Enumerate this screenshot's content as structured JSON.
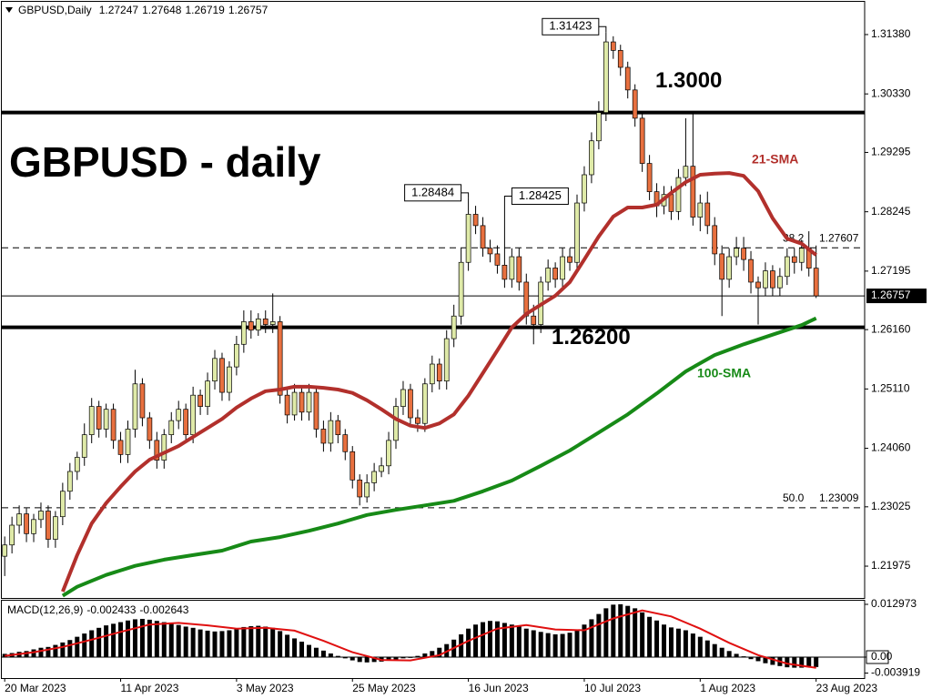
{
  "chart_data": [
    {
      "type": "candlestick",
      "symbol": "GBPUSD,Daily",
      "title": "GBPUSD - daily",
      "up_color": "#dfeaa8",
      "down_color": "#e8703f",
      "xlim": [
        -0.4,
        118.7
      ],
      "ylim": [
        1.21412,
        1.31911
      ],
      "yticks": [
        {
          "value": 1.3138,
          "label": "1.31380"
        },
        {
          "value": 1.3033,
          "label": "1.30330"
        },
        1.29295,
        1.28245,
        1.27195,
        {
          "value": 1.2616,
          "label": "1.26160"
        },
        {
          "value": 1.2511,
          "label": "1.25110"
        },
        {
          "value": 1.2406,
          "label": "1.24060"
        },
        1.23025,
        1.21975
      ],
      "open": [
        1.2215,
        1.2235,
        1.227,
        1.229,
        1.2255,
        1.228,
        1.2295,
        1.2245,
        1.2285,
        1.233,
        1.2365,
        1.239,
        1.243,
        1.248,
        1.244,
        1.2475,
        1.242,
        1.2395,
        1.244,
        1.252,
        1.246,
        1.242,
        1.2385,
        1.243,
        1.2455,
        1.2475,
        1.243,
        1.25,
        1.248,
        1.2525,
        1.2565,
        1.2505,
        1.255,
        1.259,
        1.263,
        1.2615,
        1.2635,
        1.2625,
        1.263,
        1.25,
        1.2465,
        1.2505,
        1.247,
        1.2505,
        1.244,
        1.2415,
        1.2455,
        1.243,
        1.24,
        1.235,
        1.232,
        1.2345,
        1.2365,
        1.2375,
        1.242,
        1.248,
        1.251,
        1.246,
        1.245,
        1.252,
        1.2555,
        1.2525,
        1.26,
        1.264,
        1.2735,
        1.282,
        1.28,
        1.276,
        1.275,
        1.273,
        1.2705,
        1.2745,
        1.27,
        1.264,
        1.2625,
        1.27,
        1.2725,
        1.2705,
        1.2745,
        1.2735,
        1.284,
        1.289,
        1.295,
        1.3,
        1.3125,
        1.311,
        1.308,
        1.304,
        1.299,
        1.291,
        1.286,
        1.2835,
        1.2855,
        1.2825,
        1.2885,
        1.2905,
        1.2815,
        1.284,
        1.28,
        1.275,
        1.2705,
        1.2745,
        1.276,
        1.274,
        1.27,
        1.269,
        1.272,
        1.269,
        1.271,
        1.2745,
        1.2735,
        1.276,
        1.27247
      ],
      "high": [
        1.225,
        1.2285,
        1.2305,
        1.23,
        1.229,
        1.231,
        1.2305,
        1.2295,
        1.2345,
        1.238,
        1.24,
        1.245,
        1.2495,
        1.249,
        1.2485,
        1.2485,
        1.2435,
        1.2455,
        1.2545,
        1.253,
        1.247,
        1.2435,
        1.244,
        1.247,
        1.249,
        1.2485,
        1.2515,
        1.251,
        1.254,
        1.258,
        1.2575,
        1.256,
        1.2605,
        1.265,
        1.265,
        1.2645,
        1.265,
        1.268,
        1.264,
        1.2515,
        1.252,
        1.2515,
        1.252,
        1.2515,
        1.2455,
        1.247,
        1.2465,
        1.244,
        1.241,
        1.236,
        1.236,
        1.238,
        1.239,
        1.2435,
        1.2495,
        1.2525,
        1.252,
        1.2475,
        1.253,
        1.257,
        1.2565,
        1.2615,
        1.266,
        1.276,
        1.28484,
        1.2835,
        1.2815,
        1.2775,
        1.2765,
        1.28425,
        1.276,
        1.276,
        1.2715,
        1.266,
        1.271,
        1.274,
        1.2735,
        1.276,
        1.276,
        1.2855,
        1.2905,
        1.2965,
        1.302,
        1.31423,
        1.3135,
        1.312,
        1.309,
        1.305,
        1.3,
        1.2925,
        1.2875,
        1.287,
        1.287,
        1.29,
        1.299,
        1.3,
        1.2855,
        1.286,
        1.2815,
        1.2765,
        1.276,
        1.278,
        1.278,
        1.2755,
        1.271,
        1.2735,
        1.273,
        1.2725,
        1.276,
        1.276,
        1.2775,
        1.279,
        1.27648
      ],
      "low": [
        1.218,
        1.222,
        1.2255,
        1.224,
        1.224,
        1.2265,
        1.223,
        1.223,
        1.227,
        1.2315,
        1.235,
        1.2375,
        1.2415,
        1.2425,
        1.2425,
        1.2405,
        1.238,
        1.238,
        1.2425,
        1.2445,
        1.2405,
        1.237,
        1.237,
        1.2415,
        1.244,
        1.2415,
        1.2415,
        1.2465,
        1.2465,
        1.251,
        1.249,
        1.249,
        1.2535,
        1.2575,
        1.26,
        1.2605,
        1.261,
        1.261,
        1.2485,
        1.245,
        1.2455,
        1.2455,
        1.2455,
        1.2425,
        1.24,
        1.24,
        1.2415,
        1.2385,
        1.2335,
        1.2305,
        1.231,
        1.233,
        1.2355,
        1.236,
        1.2405,
        1.2465,
        1.2445,
        1.2435,
        1.2435,
        1.2505,
        1.251,
        1.251,
        1.2585,
        1.2625,
        1.272,
        1.2785,
        1.2745,
        1.2735,
        1.2715,
        1.269,
        1.269,
        1.2685,
        1.2625,
        1.259,
        1.261,
        1.2685,
        1.269,
        1.269,
        1.272,
        1.272,
        1.2825,
        1.2875,
        1.2935,
        1.2985,
        1.3095,
        1.3065,
        1.3025,
        1.2975,
        1.2895,
        1.2845,
        1.2815,
        1.282,
        1.281,
        1.281,
        1.287,
        1.28,
        1.279,
        1.2785,
        1.273,
        1.264,
        1.269,
        1.273,
        1.272,
        1.268,
        1.2625,
        1.2675,
        1.2675,
        1.2675,
        1.2695,
        1.2715,
        1.272,
        1.271,
        1.26719
      ],
      "close": [
        1.2235,
        1.227,
        1.229,
        1.2255,
        1.228,
        1.2295,
        1.2245,
        1.2285,
        1.233,
        1.2365,
        1.239,
        1.243,
        1.248,
        1.244,
        1.2475,
        1.242,
        1.2395,
        1.244,
        1.252,
        1.246,
        1.242,
        1.2385,
        1.243,
        1.2455,
        1.2475,
        1.243,
        1.25,
        1.248,
        1.2525,
        1.2565,
        1.2505,
        1.255,
        1.259,
        1.263,
        1.2615,
        1.2635,
        1.2625,
        1.263,
        1.25,
        1.2465,
        1.2505,
        1.247,
        1.2505,
        1.244,
        1.2415,
        1.2455,
        1.243,
        1.24,
        1.235,
        1.232,
        1.2345,
        1.2365,
        1.2375,
        1.242,
        1.248,
        1.251,
        1.246,
        1.245,
        1.252,
        1.2555,
        1.2525,
        1.26,
        1.264,
        1.2735,
        1.282,
        1.28,
        1.276,
        1.275,
        1.273,
        1.2705,
        1.2745,
        1.27,
        1.264,
        1.2625,
        1.27,
        1.2725,
        1.2705,
        1.2745,
        1.2735,
        1.284,
        1.289,
        1.295,
        1.3,
        1.3125,
        1.311,
        1.308,
        1.304,
        1.299,
        1.291,
        1.286,
        1.2835,
        1.2855,
        1.2825,
        1.2885,
        1.2905,
        1.2815,
        1.284,
        1.28,
        1.275,
        1.2705,
        1.2745,
        1.276,
        1.274,
        1.27,
        1.269,
        1.272,
        1.269,
        1.271,
        1.2745,
        1.2735,
        1.276,
        1.27247,
        1.26757
      ],
      "overlays": [
        {
          "name": "21-SMA",
          "color": "#b2302c",
          "x": [
            8,
            10,
            12,
            14,
            16,
            18,
            20,
            22,
            24,
            26,
            28,
            30,
            32,
            34,
            36,
            38,
            40,
            42,
            44,
            46,
            48,
            50,
            52,
            54,
            56,
            58,
            60,
            62,
            64,
            66,
            68,
            70,
            72,
            74,
            76,
            78,
            80,
            82,
            84,
            86,
            88,
            90,
            92,
            94,
            96,
            98,
            100,
            102,
            104,
            106,
            108,
            110,
            112
          ],
          "values": [
            1.21525,
            1.2217,
            1.2273,
            1.2309,
            1.2338,
            1.2365,
            1.2386,
            1.2398,
            1.241,
            1.2426,
            1.2442,
            1.2458,
            1.2478,
            1.2494,
            1.2507,
            1.251,
            1.2515,
            1.2515,
            1.2513,
            1.251,
            1.2504,
            1.2491,
            1.2475,
            1.2458,
            1.2446,
            1.2442,
            1.245,
            1.2466,
            1.2499,
            1.2539,
            1.2579,
            1.262,
            1.2644,
            1.266,
            1.2676,
            1.27,
            1.274,
            1.2781,
            1.2816,
            1.2832,
            1.2832,
            1.2837,
            1.2858,
            1.2877,
            1.289,
            1.2892,
            1.2893,
            1.2888,
            1.2861,
            1.2813,
            1.2777,
            1.2768,
            1.2748
          ]
        },
        {
          "name": "100-SMA",
          "color": "#178a17",
          "x": [
            8,
            10,
            14,
            18,
            22,
            26,
            30,
            34,
            38,
            42,
            46,
            50,
            54,
            58,
            62,
            66,
            70,
            74,
            78,
            82,
            86,
            90,
            94,
            98,
            102,
            106,
            110,
            112
          ],
          "values": [
            1.2145,
            1.2161,
            1.2182,
            1.2198,
            1.2209,
            1.2217,
            1.2225,
            1.2241,
            1.2249,
            1.226,
            1.2273,
            1.2288,
            1.2297,
            1.2305,
            1.2313,
            1.233,
            1.2349,
            1.2375,
            1.2402,
            1.2434,
            1.2466,
            1.2503,
            1.2542,
            1.2571,
            1.259,
            1.2607,
            1.2624,
            1.2636
          ]
        }
      ],
      "levels": [
        {
          "value": 1.3,
          "label": "1.3000"
        },
        {
          "value": 1.262,
          "label": "1.26200"
        }
      ],
      "fib": [
        {
          "level": "38.2",
          "price": 1.27607
        },
        {
          "level": "50.0",
          "price": 1.23009
        }
      ]
    },
    {
      "type": "macd",
      "title": "MACD(12,26,9)",
      "xlim": [
        -0.4,
        118.7
      ],
      "ylim": [
        -0.00515,
        0.01387
      ],
      "yticks": [
        0.012973,
        {
          "value": 0,
          "label": "0.00"
        },
        -0.003919
      ],
      "xticks": [
        {
          "value": 0,
          "label": "20 Mar 2023"
        },
        {
          "value": 16,
          "label": "11 Apr 2023"
        },
        {
          "value": 32,
          "label": "3 May 2023"
        },
        {
          "value": 48,
          "label": "25 May 2023"
        },
        {
          "value": 64,
          "label": "16 Jun 2023"
        },
        {
          "value": 80,
          "label": "10 Jul 2023"
        },
        {
          "value": 96,
          "label": "1 Aug 2023"
        },
        {
          "value": 112,
          "label": "23 Aug 2023"
        }
      ],
      "histogram": {
        "color": "#000000",
        "values": [
          0.0008,
          0.001,
          0.0013,
          0.0015,
          0.0019,
          0.0023,
          0.0025,
          0.003,
          0.0036,
          0.0042,
          0.005,
          0.0058,
          0.0066,
          0.0072,
          0.0078,
          0.0082,
          0.0086,
          0.009,
          0.0093,
          0.0094,
          0.0092,
          0.0089,
          0.0086,
          0.0082,
          0.0079,
          0.0075,
          0.0072,
          0.0068,
          0.0065,
          0.0063,
          0.0064,
          0.0066,
          0.007,
          0.0074,
          0.0076,
          0.0077,
          0.0075,
          0.0072,
          0.0064,
          0.0055,
          0.0046,
          0.0038,
          0.003,
          0.0023,
          0.0016,
          0.0009,
          0.0003,
          -0.0003,
          -0.0008,
          -0.0012,
          -0.0013,
          -0.0012,
          -0.0011,
          -0.0009,
          -0.0006,
          -0.0003,
          -0.0002,
          0.0003,
          0.0009,
          0.0015,
          0.0023,
          0.0032,
          0.0043,
          0.0056,
          0.007,
          0.008,
          0.0086,
          0.0089,
          0.0088,
          0.0084,
          0.008,
          0.0075,
          0.007,
          0.0066,
          0.0062,
          0.0059,
          0.0056,
          0.0057,
          0.006,
          0.0068,
          0.008,
          0.0093,
          0.0106,
          0.012,
          0.0129,
          0.013,
          0.0126,
          0.012,
          0.011,
          0.0099,
          0.009,
          0.008,
          0.0073,
          0.007,
          0.0066,
          0.0058,
          0.005,
          0.0041,
          0.0032,
          0.0023,
          0.0015,
          0.0008,
          0.0002,
          -0.0005,
          -0.001,
          -0.0015,
          -0.0019,
          -0.0022,
          -0.0025,
          -0.0026,
          -0.0026,
          -0.0024,
          -0.002433
        ]
      },
      "signal": {
        "color": "#e01010",
        "x": [
          0,
          4,
          8,
          12,
          16,
          20,
          24,
          28,
          32,
          36,
          40,
          44,
          48,
          52,
          56,
          60,
          64,
          68,
          72,
          76,
          80,
          84,
          88,
          92,
          96,
          100,
          104,
          108,
          112
        ],
        "values": [
          0.0003,
          0.0012,
          0.0025,
          0.0043,
          0.0062,
          0.008,
          0.0084,
          0.0078,
          0.007,
          0.0072,
          0.0065,
          0.004,
          0.0012,
          -0.0007,
          -0.0008,
          0.0005,
          0.004,
          0.007,
          0.0079,
          0.0068,
          0.0066,
          0.0095,
          0.0115,
          0.01,
          0.007,
          0.0035,
          0.0005,
          -0.0016,
          -0.002643
        ]
      }
    }
  ]
}
